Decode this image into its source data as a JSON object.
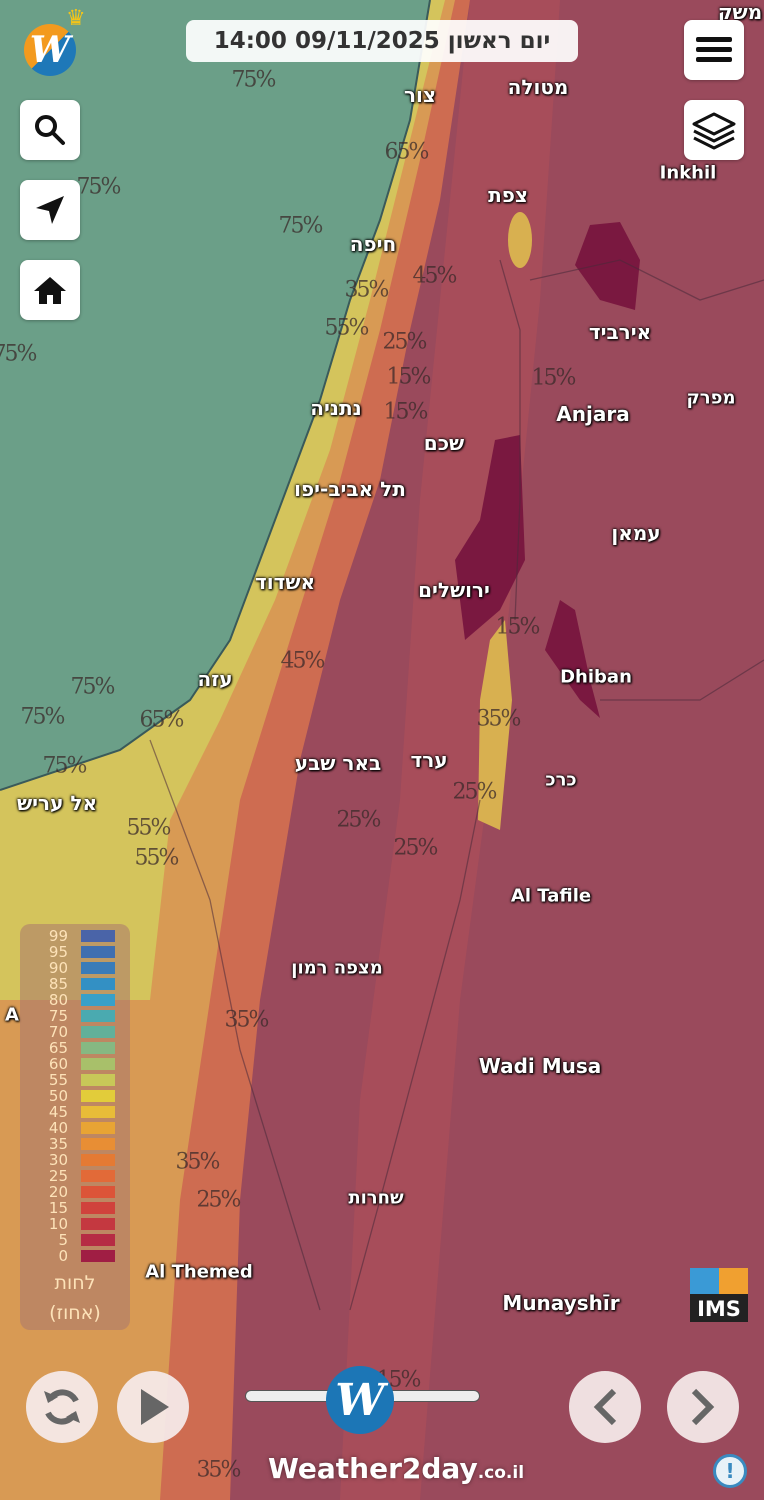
{
  "header": {
    "datetime": "יום ראשון 09/11/2025 14:00"
  },
  "buttons": {
    "menu": "menu-icon",
    "layers": "layers-icon",
    "search": "search-icon",
    "locate": "navigation-arrow-icon",
    "home": "home-icon"
  },
  "map": {
    "cities": [
      {
        "name": "צור"
      },
      {
        "name": "מטולה"
      },
      {
        "name": "צפת"
      },
      {
        "name": "חיפה"
      },
      {
        "name": "Inkhil"
      },
      {
        "name": "אירביד"
      },
      {
        "name": "נתניה"
      },
      {
        "name": "Anjara"
      },
      {
        "name": "מפרק"
      },
      {
        "name": "שכם"
      },
      {
        "name": "תל אביב-יפו"
      },
      {
        "name": "עמאן"
      },
      {
        "name": "אשדוד"
      },
      {
        "name": "ירושלים"
      },
      {
        "name": "עזה"
      },
      {
        "name": "Dhiban"
      },
      {
        "name": "באר שבע"
      },
      {
        "name": "ערד"
      },
      {
        "name": "כרכ"
      },
      {
        "name": "אל עריש"
      },
      {
        "name": "Al Tafile"
      },
      {
        "name": "מצפה רמון"
      },
      {
        "name": "Wadi Musa"
      },
      {
        "name": "שחרות"
      },
      {
        "name": "Al Themed"
      },
      {
        "name": "Munayshīr"
      },
      {
        "name": "משק"
      },
      {
        "name": "A"
      }
    ],
    "contours": [
      "75%",
      "75%",
      "65%",
      "75%",
      "45%",
      "35%",
      "55%",
      "25%",
      "75%",
      "15%",
      "15%",
      "15%",
      "15%",
      "45%",
      "75%",
      "75%",
      "65%",
      "35%",
      "25%",
      "75%",
      "55%",
      "55%",
      "25%",
      "25%",
      "35%",
      "35%",
      "25%",
      "15%",
      "35%"
    ]
  },
  "legend": {
    "title": "לחות",
    "unit": "(אחוז)",
    "steps": [
      {
        "v": "99",
        "c": "#4a64a8"
      },
      {
        "v": "95",
        "c": "#3f6fb0"
      },
      {
        "v": "90",
        "c": "#3a7cb8"
      },
      {
        "v": "85",
        "c": "#3390c4"
      },
      {
        "v": "80",
        "c": "#38a0c8"
      },
      {
        "v": "75",
        "c": "#4aaab0"
      },
      {
        "v": "70",
        "c": "#62b09a"
      },
      {
        "v": "65",
        "c": "#86b882"
      },
      {
        "v": "60",
        "c": "#a8c06a"
      },
      {
        "v": "55",
        "c": "#c8c858"
      },
      {
        "v": "50",
        "c": "#e2cc3a"
      },
      {
        "v": "45",
        "c": "#e8bc38"
      },
      {
        "v": "40",
        "c": "#e8a434"
      },
      {
        "v": "35",
        "c": "#e88e34"
      },
      {
        "v": "30",
        "c": "#e47a34"
      },
      {
        "v": "25",
        "c": "#e26a38"
      },
      {
        "v": "20",
        "c": "#dc5438"
      },
      {
        "v": "15",
        "c": "#d0423c"
      },
      {
        "v": "10",
        "c": "#c43840"
      },
      {
        "v": "5",
        "c": "#b62c44"
      },
      {
        "v": "0",
        "c": "#a01e44"
      }
    ]
  },
  "footer": {
    "brand": "Weather2day",
    "brand_suffix": ".co.il",
    "ims": "IMS",
    "info": "!"
  },
  "colors": {
    "sea": "#6b9f88",
    "coast": "#d8c45a",
    "land_orange": "#d8704c",
    "land_red": "#9a4a5c",
    "dry": "#7a1840",
    "accent": "#1c76b6"
  }
}
